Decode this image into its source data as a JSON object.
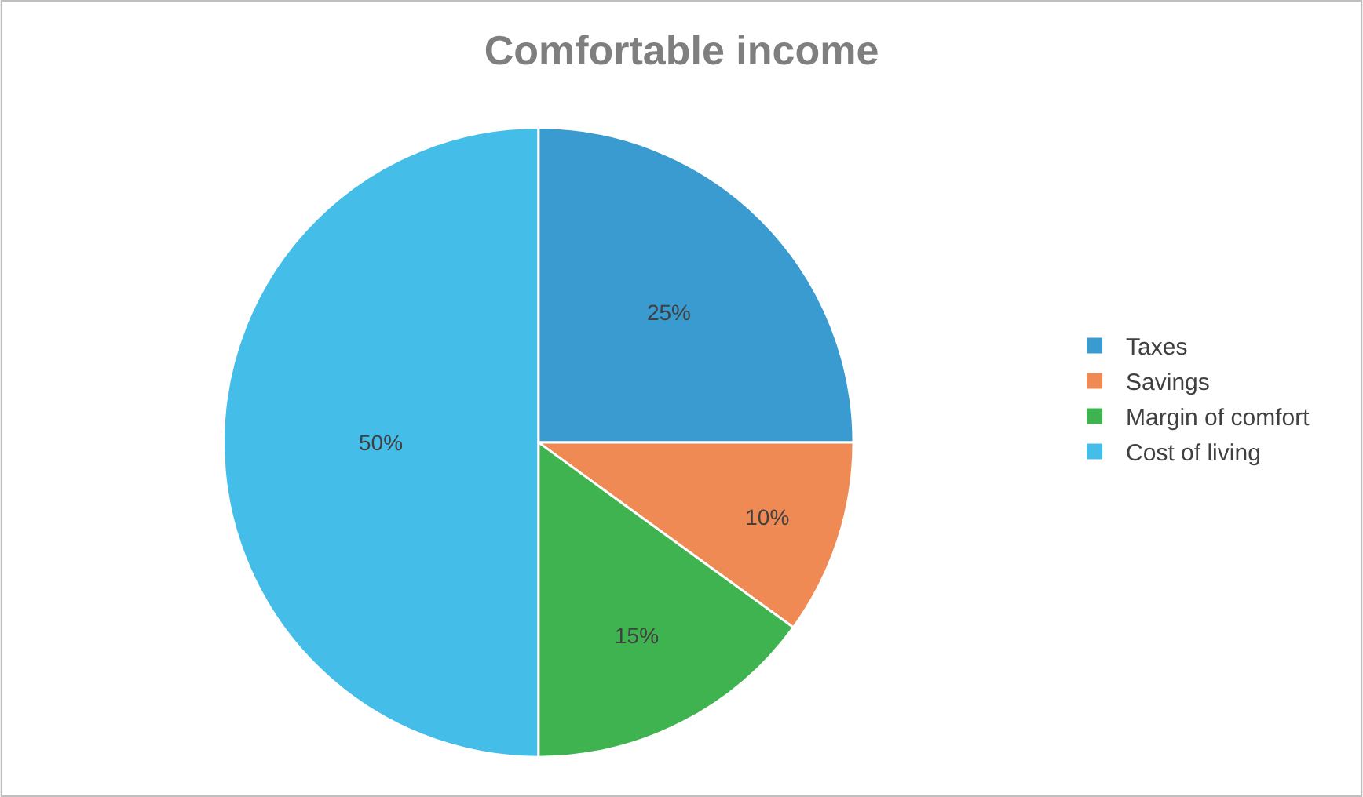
{
  "chart_data": {
    "type": "pie",
    "title": "Comfortable income",
    "categories": [
      "Taxes",
      "Savings",
      "Margin of comfort",
      "Cost of living"
    ],
    "values": [
      25,
      10,
      15,
      50
    ],
    "value_labels": [
      "25%",
      "10%",
      "15%",
      "50%"
    ],
    "colors": [
      "#3a9bd0",
      "#f08a55",
      "#3fb34f",
      "#45bde9"
    ],
    "legend": "right"
  }
}
